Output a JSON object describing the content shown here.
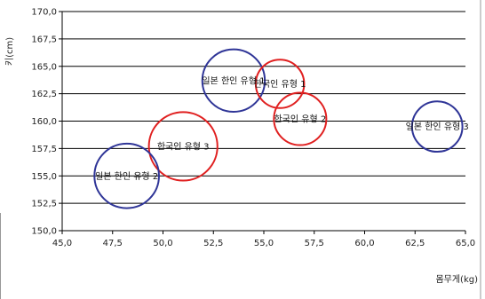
{
  "chart_data": {
    "type": "bubble",
    "title": "",
    "xlabel": "몸무게(kg)",
    "ylabel": "키(cm)",
    "xlim": [
      45.0,
      65.0
    ],
    "ylim": [
      150.0,
      170.0
    ],
    "x_ticks": [
      "45,0",
      "47,5",
      "50,0",
      "52,5",
      "55,0",
      "57,5",
      "60,0",
      "62,5",
      "65,0"
    ],
    "y_ticks": [
      "150,0",
      "152,5",
      "155,0",
      "157,5",
      "160,0",
      "162,5",
      "165,0",
      "167,5",
      "170,0"
    ],
    "grid": "horizontal",
    "series": [
      {
        "label": "일본 한인 유형 1",
        "x": 53.5,
        "y": 163.7,
        "r_kg": 3.1,
        "color": "#2f3597"
      },
      {
        "label": "한국인 유형 1",
        "x": 55.8,
        "y": 163.4,
        "r_kg": 2.4,
        "color": "#e02020"
      },
      {
        "label": "한국인 유형 2",
        "x": 56.8,
        "y": 160.2,
        "r_kg": 2.6,
        "color": "#e02020"
      },
      {
        "label": "일본 한인 유형 3",
        "x": 63.6,
        "y": 159.5,
        "r_kg": 2.5,
        "color": "#2f3597"
      },
      {
        "label": "한국인 유형 3",
        "x": 51.0,
        "y": 157.7,
        "r_kg": 3.4,
        "color": "#e02020"
      },
      {
        "label": "일본 한인 유형 2",
        "x": 48.2,
        "y": 155.0,
        "r_kg": 3.2,
        "color": "#2f3597"
      }
    ]
  }
}
